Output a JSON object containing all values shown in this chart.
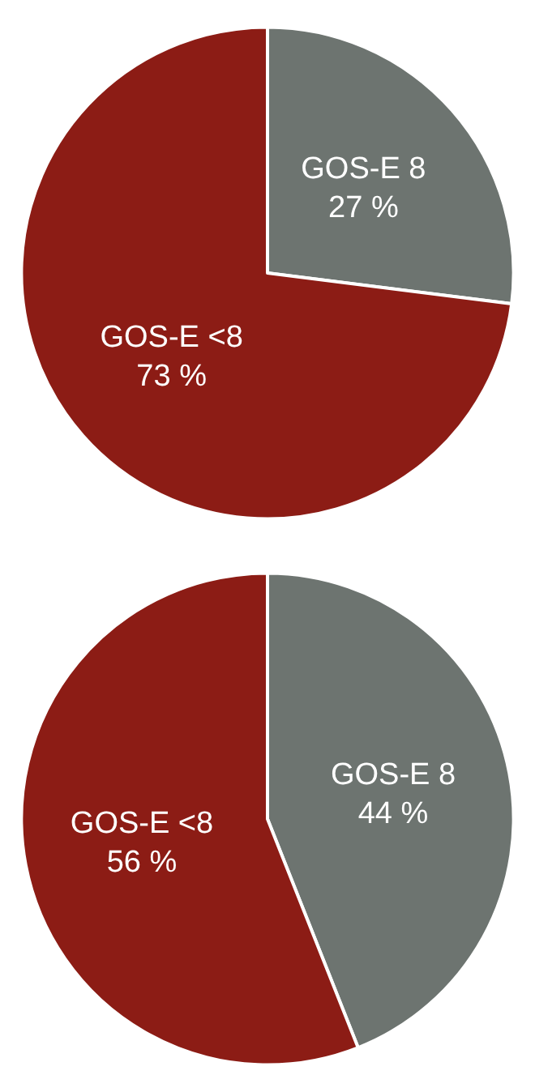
{
  "chart_data": [
    {
      "type": "pie",
      "categories": [
        "GOS-E 8",
        "GOS-E <8"
      ],
      "values": [
        27,
        73
      ],
      "colors": [
        "#6d7470",
        "#8c1c15"
      ],
      "value_labels": [
        "27 %",
        "73 %"
      ]
    },
    {
      "type": "pie",
      "categories": [
        "GOS-E 8",
        "GOS-E <8"
      ],
      "values": [
        44,
        56
      ],
      "colors": [
        "#6d7470",
        "#8c1c15"
      ],
      "value_labels": [
        "44 %",
        "56 %"
      ]
    }
  ]
}
